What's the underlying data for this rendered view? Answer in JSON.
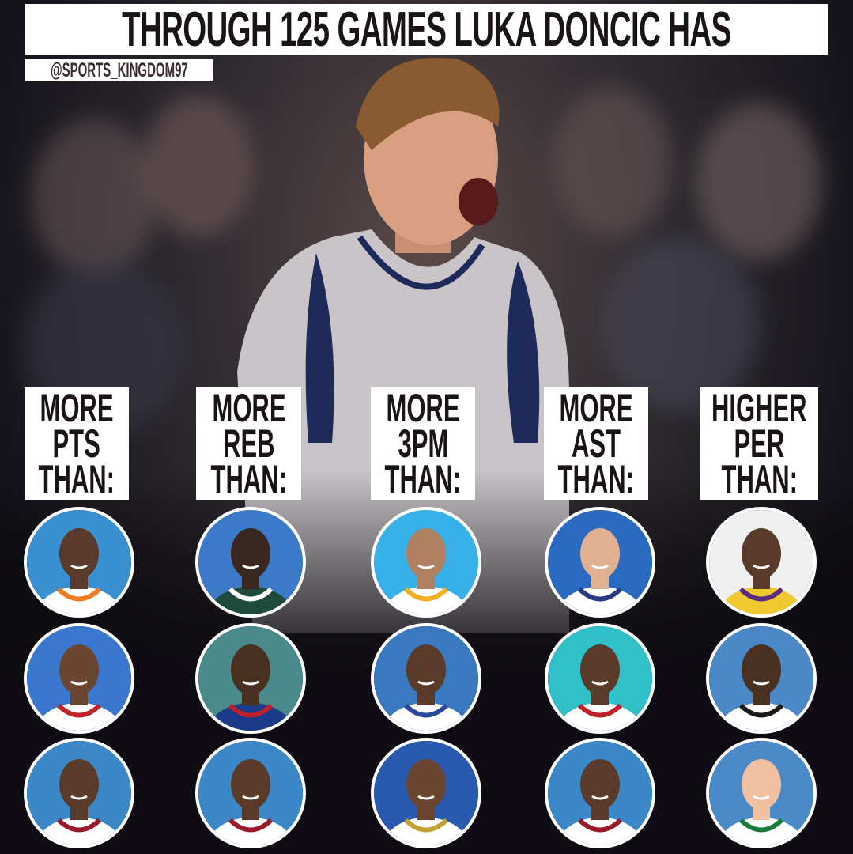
{
  "header": {
    "title": "THROUGH 125 GAMES LUKA DONCIC HAS",
    "handle": "@SPORTS_KINGDOM97"
  },
  "columns": [
    {
      "label_lines": [
        "MORE",
        "PTS",
        "THAN:"
      ],
      "portraits": [
        {
          "bg": "#3a8fd0",
          "jersey": "#ffffff",
          "trim": "#f07a20",
          "skin": "#5a3a28"
        },
        {
          "bg": "#3a78d0",
          "jersey": "#ffffff",
          "trim": "#c0202a",
          "skin": "#6a4530"
        },
        {
          "bg": "#3a88c8",
          "jersey": "#ffffff",
          "trim": "#9a1a2a",
          "skin": "#5a3a28"
        }
      ]
    },
    {
      "label_lines": [
        "MORE",
        "REB",
        "THAN:"
      ],
      "portraits": [
        {
          "bg": "#3a7ac8",
          "jersey": "#1d4a3a",
          "trim": "#ffffff",
          "skin": "#3a2820"
        },
        {
          "bg": "#4a8a8a",
          "jersey": "#1a3a8a",
          "trim": "#c0202a",
          "skin": "#4a3020"
        },
        {
          "bg": "#3a88c8",
          "jersey": "#ffffff",
          "trim": "#9a1a2a",
          "skin": "#5a3a28"
        }
      ]
    },
    {
      "label_lines": [
        "MORE",
        "3PM",
        "THAN:"
      ],
      "portraits": [
        {
          "bg": "#38b0e8",
          "jersey": "#ffffff",
          "trim": "#f0b020",
          "skin": "#b08060"
        },
        {
          "bg": "#3a78c0",
          "jersey": "#ffffff",
          "trim": "#2a4aa0",
          "skin": "#5a3a28"
        },
        {
          "bg": "#2a5ab0",
          "jersey": "#ffffff",
          "trim": "#c0a030",
          "skin": "#6a4530"
        }
      ]
    },
    {
      "label_lines": [
        "MORE",
        "AST",
        "THAN:"
      ],
      "portraits": [
        {
          "bg": "#2a6ac0",
          "jersey": "#ffffff",
          "trim": "#2a3a80",
          "skin": "#e0b090"
        },
        {
          "bg": "#30c0c8",
          "jersey": "#ffffff",
          "trim": "#c0202a",
          "skin": "#5a3a28"
        },
        {
          "bg": "#3a88c8",
          "jersey": "#ffffff",
          "trim": "#9a1a2a",
          "skin": "#5a3a28"
        }
      ]
    },
    {
      "label_lines": [
        "HIGHER",
        "PER",
        "THAN:"
      ],
      "portraits": [
        {
          "bg": "#f0f0f0",
          "jersey": "#f0c830",
          "trim": "#5a2a80",
          "skin": "#5a3a28"
        },
        {
          "bg": "#4a88c8",
          "jersey": "#ffffff",
          "trim": "#1a1a1a",
          "skin": "#4a3020"
        },
        {
          "bg": "#4a8ac8",
          "jersey": "#ffffff",
          "trim": "#1a7a3a",
          "skin": "#f0c0a0"
        }
      ]
    }
  ]
}
